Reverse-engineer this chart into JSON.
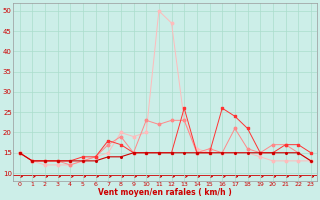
{
  "xlabel": "Vent moyen/en rafales ( km/h )",
  "xlim": [
    -0.5,
    23.5
  ],
  "ylim": [
    8,
    52
  ],
  "yticks": [
    10,
    15,
    20,
    25,
    30,
    35,
    40,
    45,
    50
  ],
  "xticks": [
    0,
    1,
    2,
    3,
    4,
    5,
    6,
    7,
    8,
    9,
    10,
    11,
    12,
    13,
    14,
    15,
    16,
    17,
    18,
    19,
    20,
    21,
    22,
    23
  ],
  "background_color": "#cceee8",
  "grid_color": "#aaddcc",
  "line_colors": [
    "#ffbbbb",
    "#ff8888",
    "#ff3333",
    "#cc0000"
  ],
  "arrow_color": "#cc0000",
  "line1_y": [
    15,
    13,
    12,
    12,
    12,
    13,
    14,
    15,
    20,
    19,
    20,
    50,
    47,
    23,
    16,
    15,
    15,
    15,
    15,
    14,
    13,
    13,
    13,
    13
  ],
  "line2_y": [
    15,
    13,
    13,
    13,
    12,
    13,
    14,
    17,
    19,
    15,
    23,
    22,
    23,
    23,
    15,
    16,
    15,
    21,
    16,
    15,
    17,
    17,
    15,
    13
  ],
  "line3_y": [
    15,
    13,
    13,
    13,
    13,
    14,
    14,
    18,
    17,
    15,
    15,
    15,
    15,
    26,
    15,
    15,
    26,
    24,
    21,
    15,
    15,
    17,
    17,
    15
  ],
  "line4_y": [
    15,
    13,
    13,
    13,
    13,
    13,
    13,
    14,
    14,
    15,
    15,
    15,
    15,
    15,
    15,
    15,
    15,
    15,
    15,
    15,
    15,
    15,
    15,
    13
  ],
  "arrows_x": [
    0,
    1,
    2,
    3,
    4,
    5,
    6,
    7,
    8,
    9,
    10,
    11,
    12,
    13,
    14,
    15,
    16,
    17,
    18,
    19,
    20,
    21,
    22,
    23
  ],
  "arrows_rotate": [
    0,
    0,
    0,
    0,
    0,
    0,
    0,
    0,
    0,
    0,
    0,
    0,
    0,
    0,
    0,
    0,
    0,
    0,
    0,
    0,
    0,
    0,
    0,
    0
  ]
}
